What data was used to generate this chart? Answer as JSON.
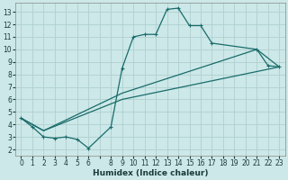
{
  "xlabel": "Humidex (Indice chaleur)",
  "xlim": [
    -0.5,
    23.5
  ],
  "ylim": [
    1.5,
    13.7
  ],
  "xtick_positions": [
    0,
    1,
    2,
    3,
    4,
    5,
    6,
    7,
    8,
    9,
    10,
    11,
    12,
    13,
    14,
    15,
    16,
    17,
    18,
    19,
    20,
    21,
    22,
    23
  ],
  "xtick_labels": [
    "0",
    "1",
    "2",
    "3",
    "4",
    "5",
    "6",
    "",
    "8",
    "9",
    "10",
    "11",
    "12",
    "13",
    "14",
    "15",
    "16",
    "17",
    "18",
    "19",
    "20",
    "21",
    "22",
    "23"
  ],
  "yticks": [
    2,
    3,
    4,
    5,
    6,
    7,
    8,
    9,
    10,
    11,
    12,
    13
  ],
  "background_color": "#cce8e8",
  "grid_color": "#b0d0d0",
  "line_color": "#1a6b6b",
  "line1_x": [
    0,
    1,
    2,
    3,
    4,
    5,
    6,
    8,
    9,
    10,
    11,
    12,
    13,
    14,
    15,
    16,
    17,
    21,
    22,
    23
  ],
  "line1_y": [
    4.5,
    3.8,
    3.0,
    2.9,
    3.0,
    2.8,
    2.1,
    3.8,
    8.5,
    11.0,
    11.2,
    11.2,
    13.2,
    13.3,
    11.9,
    11.9,
    10.5,
    10.0,
    8.7,
    8.6
  ],
  "line2_x": [
    0,
    2,
    9,
    23
  ],
  "line2_y": [
    4.5,
    3.5,
    6.0,
    8.6
  ],
  "line3_x": [
    0,
    2,
    9,
    21,
    23
  ],
  "line3_y": [
    4.5,
    3.5,
    6.5,
    10.0,
    8.6
  ]
}
